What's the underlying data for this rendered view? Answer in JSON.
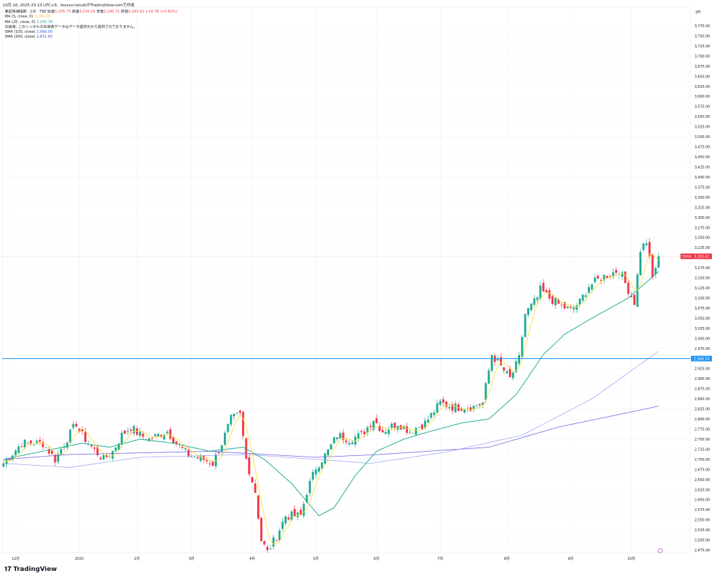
{
  "header": {
    "created": "10月 16, 2025 23:13 UTC+9、tousyo-tanukiがTradingView.comで作成"
  },
  "legend": {
    "symbol": "東証株価指数 · 1日 · TSE",
    "open_label": "始値",
    "open": "3,205.75",
    "high_label": "高値",
    "high": "3,216.29",
    "low_label": "安値",
    "low": "3,190.72",
    "close_label": "終値",
    "close": "3,203.42",
    "change": "+19.78 (+0.62%)",
    "ma5_label": "MA (5, close, 0)",
    "ma5": "3,195.38",
    "ma25_label": "MA (25, close, 0)",
    "ma25": "3,165.78",
    "volume_note": "出来高: このシンボルの出来高データはデータ提供元から提供されておりません。",
    "sma100_label": "SMA (100, close)",
    "sma100": "2,968.00",
    "sma200_label": "SMA (200, close)",
    "sma200": "2,831.83"
  },
  "currency": "JPY",
  "brand": "TradingView",
  "colors": {
    "up": "#22ab94",
    "down": "#f23645",
    "ma5": "#f7e54a",
    "ma25": "#22ab94",
    "sma100": "#9fa8f5",
    "sma200": "#6e63e0",
    "hline": "#2196f3"
  },
  "chart_data": {
    "type": "candlestick",
    "ylim": [
      2462,
      3790
    ],
    "yticks_step": 25,
    "days": 217,
    "x_ticks": [
      {
        "label": "12月",
        "day": 4
      },
      {
        "label": "2025",
        "day": 25
      },
      {
        "label": "2月",
        "day": 44
      },
      {
        "label": "3月",
        "day": 62
      },
      {
        "label": "4月",
        "day": 82
      },
      {
        "label": "5月",
        "day": 103
      },
      {
        "label": "6月",
        "day": 123
      },
      {
        "label": "7月",
        "day": 144
      },
      {
        "label": "8月",
        "day": 166
      },
      {
        "label": "9月",
        "day": 187
      },
      {
        "label": "10月",
        "day": 207
      }
    ],
    "close_keypoints": [
      [
        0,
        2690
      ],
      [
        6,
        2740
      ],
      [
        13,
        2740
      ],
      [
        17,
        2700
      ],
      [
        24,
        2790
      ],
      [
        25,
        2770
      ],
      [
        29,
        2730
      ],
      [
        33,
        2700
      ],
      [
        36,
        2720
      ],
      [
        39,
        2760
      ],
      [
        42,
        2780
      ],
      [
        45,
        2760
      ],
      [
        48,
        2750
      ],
      [
        54,
        2770
      ],
      [
        57,
        2740
      ],
      [
        61,
        2710
      ],
      [
        66,
        2700
      ],
      [
        69,
        2690
      ],
      [
        72,
        2740
      ],
      [
        75,
        2800
      ],
      [
        78,
        2810
      ],
      [
        80,
        2700
      ],
      [
        83,
        2620
      ],
      [
        85,
        2500
      ],
      [
        87,
        2470
      ],
      [
        90,
        2510
      ],
      [
        93,
        2560
      ],
      [
        98,
        2560
      ],
      [
        100,
        2620
      ],
      [
        103,
        2680
      ],
      [
        107,
        2720
      ],
      [
        110,
        2760
      ],
      [
        114,
        2750
      ],
      [
        118,
        2760
      ],
      [
        122,
        2800
      ],
      [
        125,
        2770
      ],
      [
        130,
        2790
      ],
      [
        134,
        2770
      ],
      [
        139,
        2790
      ],
      [
        144,
        2840
      ],
      [
        148,
        2830
      ],
      [
        155,
        2830
      ],
      [
        158,
        2840
      ],
      [
        161,
        2960
      ],
      [
        163,
        2940
      ],
      [
        167,
        2900
      ],
      [
        170,
        2950
      ],
      [
        172,
        3060
      ],
      [
        176,
        3100
      ],
      [
        177,
        3120
      ],
      [
        180,
        3100
      ],
      [
        184,
        3080
      ],
      [
        187,
        3070
      ],
      [
        190,
        3090
      ],
      [
        193,
        3130
      ],
      [
        197,
        3150
      ],
      [
        200,
        3160
      ],
      [
        203,
        3170
      ],
      [
        206,
        3120
      ],
      [
        208,
        3090
      ],
      [
        210,
        3220
      ],
      [
        212,
        3240
      ],
      [
        214,
        3150
      ],
      [
        216,
        3203.42
      ]
    ],
    "ma25_keypoints": [
      [
        0,
        2700
      ],
      [
        13,
        2720
      ],
      [
        26,
        2740
      ],
      [
        35,
        2730
      ],
      [
        45,
        2750
      ],
      [
        56,
        2740
      ],
      [
        68,
        2720
      ],
      [
        79,
        2730
      ],
      [
        86,
        2700
      ],
      [
        95,
        2640
      ],
      [
        104,
        2560
      ],
      [
        109,
        2580
      ],
      [
        116,
        2660
      ],
      [
        123,
        2720
      ],
      [
        132,
        2750
      ],
      [
        141,
        2770
      ],
      [
        151,
        2790
      ],
      [
        160,
        2800
      ],
      [
        169,
        2860
      ],
      [
        178,
        2960
      ],
      [
        185,
        3010
      ],
      [
        194,
        3050
      ],
      [
        206,
        3100
      ],
      [
        216,
        3165.78
      ]
    ],
    "sma100_keypoints": [
      [
        0,
        2690
      ],
      [
        22,
        2680
      ],
      [
        45,
        2705
      ],
      [
        80,
        2712
      ],
      [
        103,
        2700
      ],
      [
        121,
        2690
      ],
      [
        146,
        2718
      ],
      [
        171,
        2760
      ],
      [
        194,
        2850
      ],
      [
        216,
        2968
      ]
    ],
    "sma200_keypoints": [
      [
        0,
        2700
      ],
      [
        22,
        2712
      ],
      [
        68,
        2720
      ],
      [
        103,
        2705
      ],
      [
        124,
        2712
      ],
      [
        160,
        2730
      ],
      [
        183,
        2780
      ],
      [
        216,
        2831.83
      ]
    ],
    "hline": {
      "value": 2949.74,
      "label": "2,949.74"
    },
    "last": {
      "symbol": "TOPIX",
      "value": 3203.42,
      "label": "3,203.42"
    }
  }
}
